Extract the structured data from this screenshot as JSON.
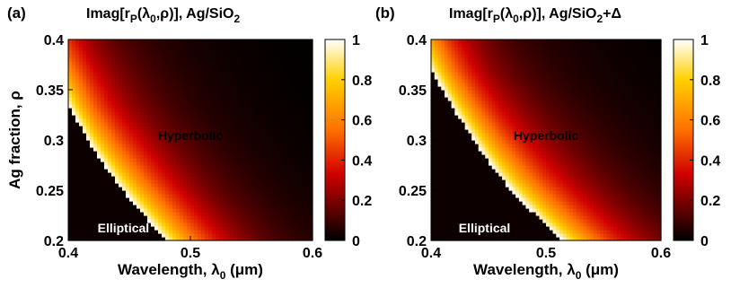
{
  "chart_data": [
    {
      "type": "heatmap",
      "panel_label": "(a)",
      "title": {
        "main": "Imag[r",
        "sub": "P",
        "args_open": "(λ",
        "args_sub": "0",
        "args_close": ",ρ)], Ag/SiO",
        "suffix_sub": "2",
        "suffix_tail": ""
      },
      "xlabel": {
        "main": "Wavelength, λ",
        "sub": "0",
        "tail": " (μm)"
      },
      "ylabel": "Ag fraction, ρ",
      "xlim": [
        0.4,
        0.6
      ],
      "ylim": [
        0.2,
        0.4
      ],
      "xticks": [
        "0.4",
        "0.5",
        "0.6"
      ],
      "yticks": [
        "0.2",
        "0.25",
        "0.3",
        "0.35",
        "0.4"
      ],
      "colorbar_ticks": [
        "0",
        "0.2",
        "0.4",
        "0.6",
        "0.8",
        "1"
      ],
      "clim": [
        0,
        1
      ],
      "boundary": [
        [
          0.4,
          0.335
        ],
        [
          0.42,
          0.292
        ],
        [
          0.44,
          0.257
        ],
        [
          0.46,
          0.228
        ],
        [
          0.48,
          0.2
        ]
      ],
      "regions": [
        {
          "label": "Hyperbolic",
          "x": 0.5,
          "y": 0.3
        },
        {
          "label": "Elliptical",
          "x": 0.424,
          "y": 0.208
        }
      ]
    },
    {
      "type": "heatmap",
      "panel_label": "(b)",
      "title": {
        "main": "Imag[r",
        "sub": "P",
        "args_open": "(λ",
        "args_sub": "0",
        "args_close": ",ρ)], Ag/SiO",
        "suffix_sub": "2",
        "suffix_tail": "+Δ"
      },
      "xlabel": {
        "main": "Wavelength, λ",
        "sub": "0",
        "tail": " (μm)"
      },
      "ylabel": "",
      "xlim": [
        0.4,
        0.6
      ],
      "ylim": [
        0.2,
        0.4
      ],
      "xticks": [
        "0.4",
        "0.5",
        "0.6"
      ],
      "yticks": [
        "0.2",
        "0.25",
        "0.3",
        "0.35",
        "0.4"
      ],
      "colorbar_ticks": [
        "0",
        "0.2",
        "0.4",
        "0.6",
        "0.8",
        "1"
      ],
      "clim": [
        0,
        1
      ],
      "boundary": [
        [
          0.4,
          0.37
        ],
        [
          0.42,
          0.33
        ],
        [
          0.44,
          0.295
        ],
        [
          0.46,
          0.263
        ],
        [
          0.48,
          0.238
        ],
        [
          0.5,
          0.215
        ],
        [
          0.515,
          0.2
        ]
      ],
      "regions": [
        {
          "label": "Hyperbolic",
          "x": 0.5,
          "y": 0.3
        },
        {
          "label": "Elliptical",
          "x": 0.424,
          "y": 0.208
        }
      ]
    }
  ]
}
